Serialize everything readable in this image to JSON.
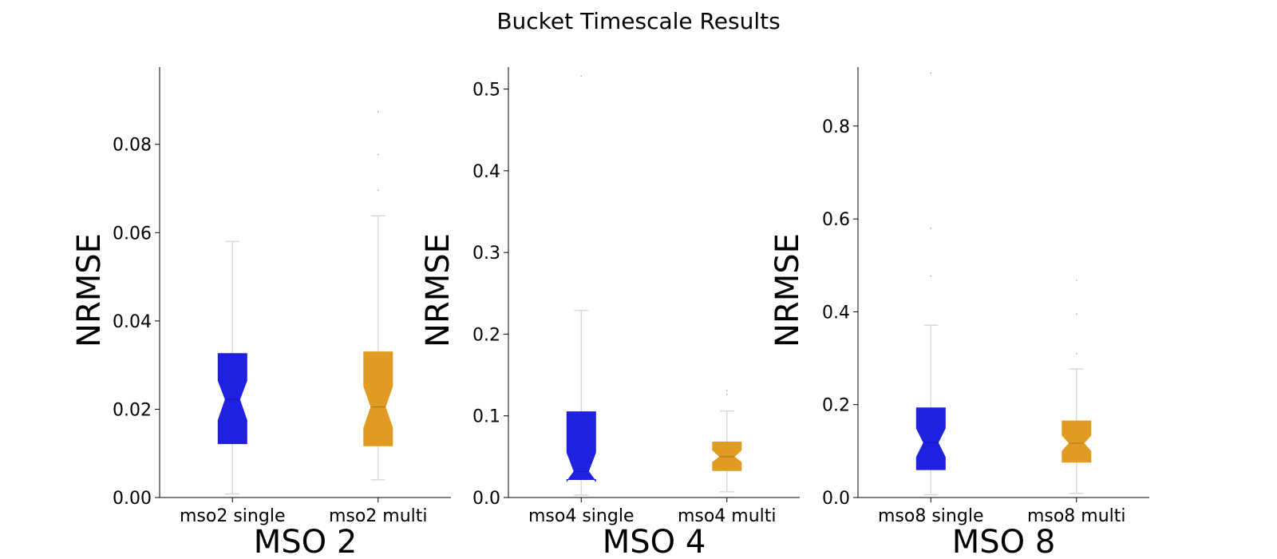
{
  "figure": {
    "title": "Bucket Timescale Results"
  },
  "chart_data": [
    {
      "type": "box",
      "notched": true,
      "xlabel": "MSO 2",
      "ylabel": "NRMSE",
      "ylim": [
        0,
        0.0975
      ],
      "yticks": [
        0.0,
        0.02,
        0.04,
        0.06,
        0.08
      ],
      "ytick_labels": [
        "0.00",
        "0.02",
        "0.04",
        "0.06",
        "0.08"
      ],
      "categories": [
        "mso2 single",
        "mso2 multi"
      ],
      "colors": [
        "#2020e0",
        "#e09b20"
      ],
      "boxes": [
        {
          "name": "mso2 single",
          "whisker_low": 0.0008,
          "q1": 0.0122,
          "median": 0.0222,
          "q3": 0.0326,
          "whisker_high": 0.058,
          "notch_low": 0.0175,
          "notch_high": 0.0265,
          "outliers": []
        },
        {
          "name": "mso2 multi",
          "whisker_low": 0.004,
          "q1": 0.0117,
          "median": 0.0205,
          "q3": 0.033,
          "whisker_high": 0.0638,
          "notch_low": 0.0158,
          "notch_high": 0.0252,
          "outliers": [
            0.0696,
            0.0777,
            0.0874
          ]
        }
      ]
    },
    {
      "type": "box",
      "notched": true,
      "xlabel": "MSO 4",
      "ylabel": "NRMSE",
      "ylim": [
        0,
        0.527
      ],
      "yticks": [
        0.0,
        0.1,
        0.2,
        0.3,
        0.4,
        0.5
      ],
      "ytick_labels": [
        "0.0",
        "0.1",
        "0.2",
        "0.3",
        "0.4",
        "0.5"
      ],
      "categories": [
        "mso4 single",
        "mso4 multi"
      ],
      "colors": [
        "#2020e0",
        "#e09b20"
      ],
      "boxes": [
        {
          "name": "mso4 single",
          "whisker_low": 0.003,
          "q1": 0.022,
          "median": 0.032,
          "q3": 0.105,
          "whisker_high": 0.229,
          "notch_low": 0.02,
          "notch_high": 0.055,
          "outliers": [
            0.516
          ]
        },
        {
          "name": "mso4 multi",
          "whisker_low": 0.007,
          "q1": 0.033,
          "median": 0.05,
          "q3": 0.068,
          "whisker_high": 0.106,
          "notch_low": 0.043,
          "notch_high": 0.058,
          "outliers": [
            0.126,
            0.131
          ]
        }
      ]
    },
    {
      "type": "box",
      "notched": true,
      "xlabel": "MSO 8",
      "ylabel": "NRMSE",
      "ylim": [
        0,
        0.927
      ],
      "yticks": [
        0.0,
        0.2,
        0.4,
        0.6,
        0.8
      ],
      "ytick_labels": [
        "0.0",
        "0.2",
        "0.4",
        "0.6",
        "0.8"
      ],
      "categories": [
        "mso8 single",
        "mso8 multi"
      ],
      "colors": [
        "#2020e0",
        "#e09b20"
      ],
      "boxes": [
        {
          "name": "mso8 single",
          "whisker_low": 0.006,
          "q1": 0.06,
          "median": 0.118,
          "q3": 0.193,
          "whisker_high": 0.371,
          "notch_low": 0.087,
          "notch_high": 0.149,
          "outliers": [
            0.477,
            0.58,
            0.914
          ]
        },
        {
          "name": "mso8 multi",
          "whisker_low": 0.009,
          "q1": 0.076,
          "median": 0.117,
          "q3": 0.165,
          "whisker_high": 0.277,
          "notch_low": 0.1,
          "notch_high": 0.134,
          "outliers": [
            0.31,
            0.395,
            0.468
          ]
        }
      ]
    }
  ]
}
